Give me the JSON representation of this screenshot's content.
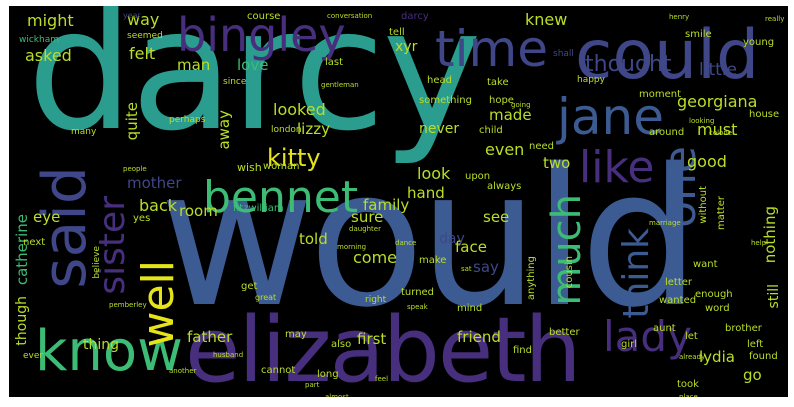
{
  "palette": {
    "teal": "#2a9d8e",
    "blue": "#3b5b92",
    "purple": "#472f7d",
    "indigo": "#3f4788",
    "green": "#3cbc75",
    "lime": "#bade28",
    "yellow": "#e5e419",
    "dark": "#440154"
  },
  "words": [
    {
      "id": "darcy",
      "text": "darcy"
    },
    {
      "id": "would",
      "text": "would"
    },
    {
      "id": "elizabeth",
      "text": "elizabeth"
    },
    {
      "id": "could",
      "text": "could"
    },
    {
      "id": "bingley",
      "text": "bingley"
    },
    {
      "id": "time",
      "text": "time"
    },
    {
      "id": "said",
      "text": "said"
    },
    {
      "id": "know",
      "text": "know"
    },
    {
      "id": "bennet",
      "text": "bennet"
    },
    {
      "id": "jane",
      "text": "jane"
    },
    {
      "id": "like",
      "text": "like"
    },
    {
      "id": "one",
      "text": "one"
    },
    {
      "id": "much",
      "text": "much"
    },
    {
      "id": "sister",
      "text": "sister"
    },
    {
      "id": "well",
      "text": "well"
    },
    {
      "id": "think",
      "text": "think"
    },
    {
      "id": "lady",
      "text": "lady"
    },
    {
      "id": "kitty",
      "text": "kitty"
    },
    {
      "id": "thought",
      "text": "thought"
    },
    {
      "id": "georgiana",
      "text": "georgiana"
    },
    {
      "id": "little",
      "text": "little"
    },
    {
      "id": "might",
      "text": "might"
    },
    {
      "id": "way",
      "text": "way"
    },
    {
      "id": "knew",
      "text": "knew"
    },
    {
      "id": "asked",
      "text": "asked"
    },
    {
      "id": "felt",
      "text": "felt"
    },
    {
      "id": "man",
      "text": "man"
    },
    {
      "id": "love",
      "text": "love"
    },
    {
      "id": "xyr",
      "text": "xyr"
    },
    {
      "id": "made",
      "text": "made"
    },
    {
      "id": "lizzy",
      "text": "lizzy"
    },
    {
      "id": "looked",
      "text": "looked"
    },
    {
      "id": "never",
      "text": "never"
    },
    {
      "id": "must",
      "text": "must"
    },
    {
      "id": "even",
      "text": "even"
    },
    {
      "id": "two",
      "text": "two"
    },
    {
      "id": "good",
      "text": "good"
    },
    {
      "id": "mother",
      "text": "mother"
    },
    {
      "id": "back",
      "text": "back"
    },
    {
      "id": "look",
      "text": "look"
    },
    {
      "id": "room",
      "text": "room"
    },
    {
      "id": "family",
      "text": "family"
    },
    {
      "id": "sure",
      "text": "sure"
    },
    {
      "id": "hand",
      "text": "hand"
    },
    {
      "id": "see",
      "text": "see"
    },
    {
      "id": "eye",
      "text": "eye"
    },
    {
      "id": "day",
      "text": "day"
    },
    {
      "id": "told",
      "text": "told"
    },
    {
      "id": "face",
      "text": "face"
    },
    {
      "id": "come",
      "text": "come"
    },
    {
      "id": "say",
      "text": "say"
    },
    {
      "id": "father",
      "text": "father"
    },
    {
      "id": "first",
      "text": "first"
    },
    {
      "id": "friend",
      "text": "friend"
    },
    {
      "id": "thing",
      "text": "thing"
    },
    {
      "id": "lydia",
      "text": "lydia"
    },
    {
      "id": "go",
      "text": "go"
    },
    {
      "id": "catherine",
      "text": "catherine"
    },
    {
      "id": "quite",
      "text": "quite"
    },
    {
      "id": "away",
      "text": "away"
    },
    {
      "id": "nothing",
      "text": "nothing"
    },
    {
      "id": "still",
      "text": "still"
    },
    {
      "id": "though",
      "text": "though"
    },
    {
      "id": "wickham",
      "text": "wickham"
    },
    {
      "id": "tell",
      "text": "tell"
    },
    {
      "id": "course",
      "text": "course"
    },
    {
      "id": "young",
      "text": "young"
    },
    {
      "id": "house",
      "text": "house"
    },
    {
      "id": "many",
      "text": "many"
    },
    {
      "id": "also",
      "text": "also"
    },
    {
      "id": "long",
      "text": "long"
    },
    {
      "id": "brother",
      "text": "brother"
    },
    {
      "id": "left",
      "text": "left"
    },
    {
      "id": "aunt",
      "text": "aunt"
    },
    {
      "id": "letter",
      "text": "letter"
    },
    {
      "id": "want",
      "text": "want"
    },
    {
      "id": "enough",
      "text": "enough"
    },
    {
      "id": "girl",
      "text": "girl"
    },
    {
      "id": "mind",
      "text": "mind"
    },
    {
      "id": "make",
      "text": "make"
    },
    {
      "id": "something",
      "text": "something"
    },
    {
      "id": "hope",
      "text": "hope"
    },
    {
      "id": "take",
      "text": "take"
    },
    {
      "id": "head",
      "text": "head"
    },
    {
      "id": "last",
      "text": "last"
    },
    {
      "id": "year",
      "text": "year"
    },
    {
      "id": "since",
      "text": "since"
    },
    {
      "id": "london",
      "text": "london"
    },
    {
      "id": "perhaps",
      "text": "perhaps"
    },
    {
      "id": "upon",
      "text": "upon"
    },
    {
      "id": "always",
      "text": "always"
    },
    {
      "id": "child",
      "text": "child"
    },
    {
      "id": "need",
      "text": "need"
    },
    {
      "id": "around",
      "text": "around"
    },
    {
      "id": "moment",
      "text": "moment"
    },
    {
      "id": "smile",
      "text": "smile"
    },
    {
      "id": "seemed",
      "text": "seemed"
    },
    {
      "id": "wish",
      "text": "wish"
    },
    {
      "id": "woman",
      "text": "woman"
    },
    {
      "id": "fitzwilliam",
      "text": "fitzwilliam"
    },
    {
      "id": "yes",
      "text": "yes"
    },
    {
      "id": "next",
      "text": "next"
    },
    {
      "id": "believe",
      "text": "believe"
    },
    {
      "id": "ever",
      "text": "ever"
    },
    {
      "id": "get",
      "text": "get"
    },
    {
      "id": "may",
      "text": "may"
    },
    {
      "id": "turned",
      "text": "turned"
    },
    {
      "id": "cannot",
      "text": "cannot"
    },
    {
      "id": "took",
      "text": "took"
    },
    {
      "id": "find",
      "text": "find"
    },
    {
      "id": "better",
      "text": "better"
    },
    {
      "id": "anything",
      "text": "anything"
    },
    {
      "id": "cousin",
      "text": "cousin"
    },
    {
      "id": "wanted",
      "text": "wanted"
    },
    {
      "id": "word",
      "text": "word"
    },
    {
      "id": "let",
      "text": "let"
    },
    {
      "id": "found",
      "text": "found"
    },
    {
      "id": "without",
      "text": "without"
    },
    {
      "id": "matter",
      "text": "matter"
    },
    {
      "id": "happy",
      "text": "happy"
    },
    {
      "id": "gentleman",
      "text": "gentleman"
    },
    {
      "id": "conversation",
      "text": "conversation"
    },
    {
      "id": "darcy2",
      "text": "darcy"
    },
    {
      "id": "great",
      "text": "great"
    },
    {
      "id": "right",
      "text": "right"
    },
    {
      "id": "part",
      "text": "part"
    },
    {
      "id": "another",
      "text": "another"
    },
    {
      "id": "almost",
      "text": "almost"
    },
    {
      "id": "people",
      "text": "people"
    },
    {
      "id": "feel",
      "text": "feel"
    },
    {
      "id": "speak",
      "text": "speak"
    },
    {
      "id": "place",
      "text": "place"
    },
    {
      "id": "going",
      "text": "going"
    },
    {
      "id": "looking",
      "text": "looking"
    },
    {
      "id": "really",
      "text": "really"
    },
    {
      "id": "already",
      "text": "already"
    },
    {
      "id": "help",
      "text": "help"
    },
    {
      "id": "henry",
      "text": "henry"
    },
    {
      "id": "pemberley",
      "text": "pemberley"
    },
    {
      "id": "daughter",
      "text": "daughter"
    },
    {
      "id": "husband",
      "text": "husband"
    },
    {
      "id": "shall",
      "text": "shall"
    },
    {
      "id": "marriage",
      "text": "marriage"
    },
    {
      "id": "dance",
      "text": "dance"
    },
    {
      "id": "colonel",
      "text": "colonel"
    },
    {
      "id": "sat",
      "text": "sat"
    },
    {
      "id": "morning",
      "text": "morning"
    }
  ]
}
